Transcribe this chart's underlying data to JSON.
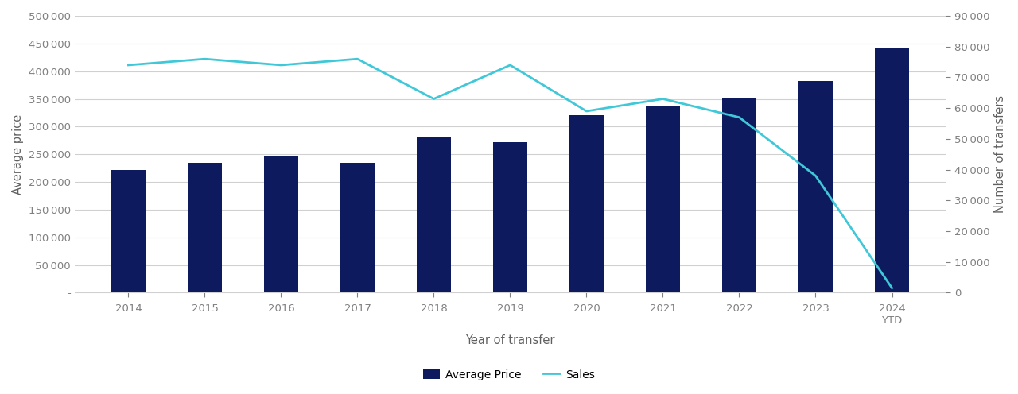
{
  "years": [
    "2014",
    "2015",
    "2016",
    "2017",
    "2018",
    "2019",
    "2020",
    "2021",
    "2022",
    "2023",
    "2024\nYTD"
  ],
  "avg_price": [
    222000,
    235000,
    248000,
    234000,
    281000,
    272000,
    321000,
    336000,
    352000,
    383000,
    443000
  ],
  "sales": [
    74000,
    76000,
    74000,
    76000,
    63000,
    74000,
    59000,
    63000,
    57000,
    38000,
    1500
  ],
  "bar_color": "#0d1b5e",
  "line_color": "#40c8d8",
  "avg_price_ylim": [
    0,
    500000
  ],
  "sales_ylim": [
    0,
    90000
  ],
  "avg_price_yticks": [
    0,
    50000,
    100000,
    150000,
    200000,
    250000,
    300000,
    350000,
    400000,
    450000,
    500000
  ],
  "sales_yticks": [
    0,
    10000,
    20000,
    30000,
    40000,
    50000,
    60000,
    70000,
    80000,
    90000
  ],
  "xlabel": "Year of transfer",
  "ylabel_left": "Average price",
  "ylabel_right": "Number of transfers",
  "legend_labels": [
    "Average Price",
    "Sales"
  ],
  "background_color": "#ffffff",
  "grid_color": "#d0d0d0",
  "tick_label_color": "#808080",
  "axis_label_color": "#606060",
  "bar_width": 0.45
}
